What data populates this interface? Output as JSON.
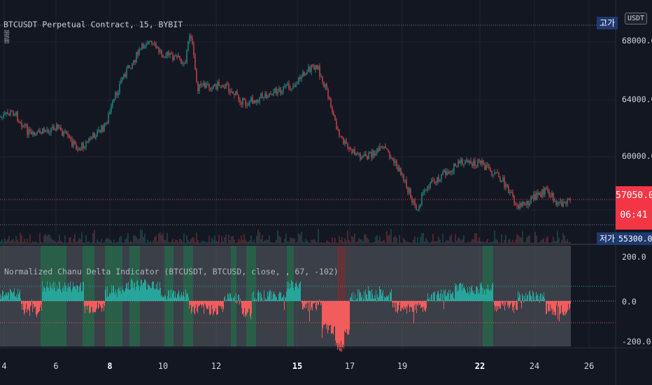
{
  "header": {
    "title": "BTCUSDT Perpetual Contract, 15, BYBIT",
    "volume_label": "볼륨"
  },
  "currency_button": "USDT",
  "price_axis": {
    "ticks": [
      "68000.0",
      "64000.0",
      "60000.0"
    ],
    "high_label": "고가",
    "low_label": "저가",
    "low_value": "55300.0",
    "current_price": "57050.0",
    "countdown": "06:41"
  },
  "indicator": {
    "title": "Normalized Chanu Delta Indicator (BTCUSDT, BTCUSD, close, , 67, -102)",
    "ticks": [
      "200.0",
      "0.0",
      "-200.0"
    ],
    "upper_level": 67,
    "lower_level": -102
  },
  "time_axis": {
    "ticks": [
      {
        "label": "4",
        "bold": false
      },
      {
        "label": "6",
        "bold": false
      },
      {
        "label": "8",
        "bold": true
      },
      {
        "label": "10",
        "bold": false
      },
      {
        "label": "12",
        "bold": false
      },
      {
        "label": "15",
        "bold": true
      },
      {
        "label": "17",
        "bold": false
      },
      {
        "label": "19",
        "bold": false
      },
      {
        "label": "22",
        "bold": true
      },
      {
        "label": "24",
        "bold": false
      },
      {
        "label": "26",
        "bold": false
      }
    ]
  },
  "colors": {
    "background": "#131722",
    "up": "#26a69a",
    "down": "#ef5350",
    "price_line": "#f23645",
    "indicator_pos": "#26a69a",
    "indicator_neg": "#f25c5c",
    "indicator_bg": "#5d6068"
  }
}
